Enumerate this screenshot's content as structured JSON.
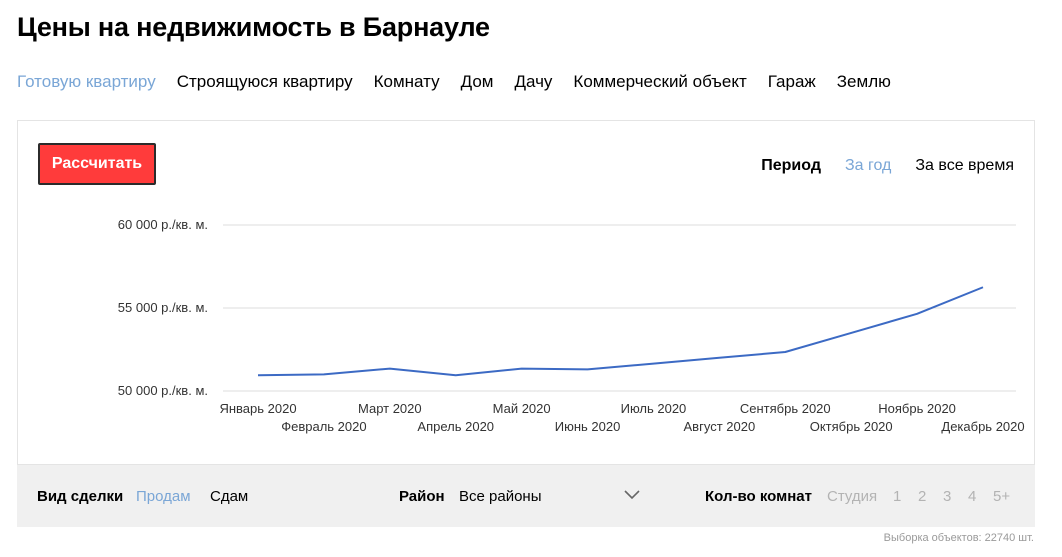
{
  "page": {
    "title": "Цены на недвижимость в Барнауле"
  },
  "tabs": [
    {
      "label": "Готовую квартиру",
      "active": true
    },
    {
      "label": "Строящуюся квартиру",
      "active": false
    },
    {
      "label": "Комнату",
      "active": false
    },
    {
      "label": "Дом",
      "active": false
    },
    {
      "label": "Дачу",
      "active": false
    },
    {
      "label": "Коммерческий объект",
      "active": false
    },
    {
      "label": "Гараж",
      "active": false
    },
    {
      "label": "Землю",
      "active": false
    }
  ],
  "controls": {
    "calculate_label": "Рассчитать",
    "period_label": "Период",
    "period_options": [
      {
        "label": "За год",
        "active": true
      },
      {
        "label": "За все время",
        "active": false
      }
    ]
  },
  "chart_data": {
    "type": "line",
    "categories": [
      "Январь 2020",
      "Февраль 2020",
      "Март 2020",
      "Апрель 2020",
      "Май 2020",
      "Июнь 2020",
      "Июль 2020",
      "Август 2020",
      "Сентябрь 2020",
      "Октябрь 2020",
      "Ноябрь 2020",
      "Декабрь 2020"
    ],
    "series": [
      {
        "values": [
          50950,
          51000,
          51350,
          50950,
          51350,
          51300,
          51650,
          52000,
          52350,
          53500,
          54650,
          56250
        ],
        "color": "#3c6ac4"
      }
    ],
    "yticks": [
      {
        "value": 50000,
        "label": "50 000 р./кв. м."
      },
      {
        "value": 55000,
        "label": "55 000 р./кв. м."
      },
      {
        "value": 60000,
        "label": "60 000 р./кв. м."
      }
    ],
    "ylim": [
      50000,
      60000
    ],
    "grid": true,
    "title": "",
    "xlabel": "",
    "ylabel": ""
  },
  "filters": {
    "deal_label": "Вид сделки",
    "deal_options": [
      {
        "label": "Продам",
        "active": true
      },
      {
        "label": "Сдам",
        "active": false
      }
    ],
    "district_label": "Район",
    "district_value": "Все районы",
    "rooms_label": "Кол-во комнат",
    "rooms_options": [
      "Студия",
      "1",
      "2",
      "3",
      "4",
      "5+"
    ]
  },
  "footer": {
    "sample_text": "Выборка объектов: 22740 шт."
  }
}
